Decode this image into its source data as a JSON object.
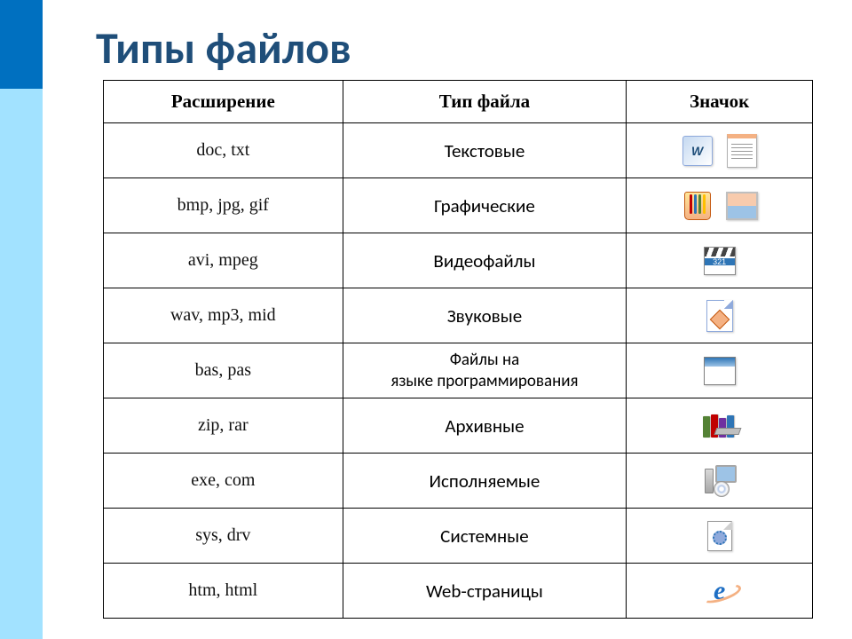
{
  "title": "Типы файлов",
  "colors": {
    "sidebar_dark": "#0070c0",
    "sidebar_light": "#a2e2ff",
    "title_color": "#1f4e79",
    "border": "#000000"
  },
  "table": {
    "columns": [
      "Расширение",
      "Тип файла",
      "Значок"
    ],
    "rows": [
      {
        "ext": "doc,   txt",
        "type": "Текстовые",
        "icons": [
          "word-icon",
          "notepad-icon"
        ]
      },
      {
        "ext": "bmp, jpg,  gif",
        "type": "Графические",
        "icons": [
          "paintcup-icon",
          "photo-icon"
        ]
      },
      {
        "ext": "avi, mpeg",
        "type": "Видеофайлы",
        "icons": [
          "clapper-icon"
        ]
      },
      {
        "ext": "wav, mp3, mid",
        "type": "Звуковые",
        "icons": [
          "audiopage-icon"
        ]
      },
      {
        "ext": "bas, pas",
        "type": "Файлы на языке программирования",
        "type_small": true,
        "icons": [
          "window-icon"
        ]
      },
      {
        "ext": "zip, rar",
        "type": "Архивные",
        "icons": [
          "books-icon"
        ]
      },
      {
        "ext": "exe, com",
        "type": "Исполняемые",
        "icons": [
          "computer-icon"
        ]
      },
      {
        "ext": "sys,  drv",
        "type": "Системные",
        "icons": [
          "sysfile-icon"
        ]
      },
      {
        "ext": "htm, html",
        "type": "Web-страницы",
        "icons": [
          "ie-icon"
        ]
      }
    ]
  }
}
